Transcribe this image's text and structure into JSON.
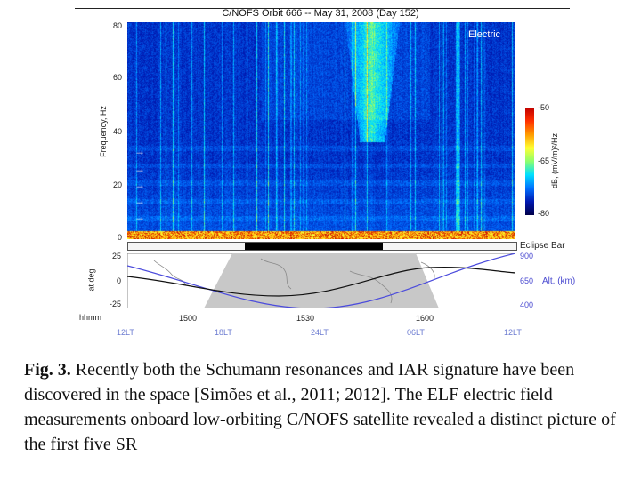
{
  "figure": {
    "title": "C/NOFS Orbit 666 -- May 31, 2008 (Day 152)",
    "panel_label": "Electric",
    "y_axis_label": "Frequency, Hz",
    "y_ticks": [
      "80",
      "60",
      "40",
      "20",
      "0"
    ],
    "colorbar": {
      "label": "dB, (mV/m)²/Hz",
      "ticks": [
        "-50",
        "-65",
        "-80"
      ],
      "colors": [
        "#c00000",
        "#ff9a00",
        "#ffff33",
        "#00e0ff",
        "#0070ff",
        "#00004a"
      ]
    },
    "arrows": [
      "→",
      "→",
      "→",
      "→",
      "→"
    ],
    "eclipse_label": "Eclipse Bar",
    "orbit_panel": {
      "lat_label": "lat deg",
      "lat_ticks": [
        "25",
        "0",
        "-25"
      ],
      "alt_label": "Alt. (km)",
      "alt_ticks": [
        "900",
        "650",
        "400"
      ],
      "time_axis_label": "hhmm",
      "time_ticks": [
        "1500",
        "1530",
        "1600"
      ],
      "local_time_ticks": [
        "12LT",
        "18LT",
        "24LT",
        "06LT",
        "12LT"
      ]
    }
  },
  "caption": {
    "label": "Fig. 3.",
    "text": " Recently both the Schumann resonances and IAR signature have been discovered in the space [Simões  et al., 2011; 2012]. The ELF electric field measurements onboard low-orbiting C/NOFS satellite revealed a distinct picture of the first five SR"
  }
}
